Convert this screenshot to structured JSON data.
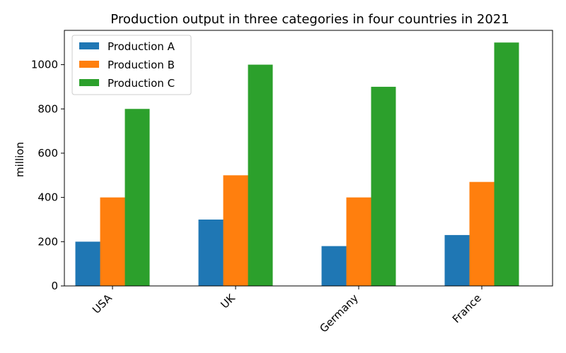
{
  "chart_data": {
    "type": "bar",
    "title": "Production output in three categories in four countries in 2021",
    "xlabel": "",
    "ylabel": "million",
    "categories": [
      "USA",
      "UK",
      "Germany",
      "France"
    ],
    "series": [
      {
        "name": "Production A",
        "values": [
          200,
          300,
          180,
          230
        ],
        "color": "#1f77b4"
      },
      {
        "name": "Production B",
        "values": [
          400,
          500,
          400,
          470
        ],
        "color": "#ff7f0e"
      },
      {
        "name": "Production C",
        "values": [
          800,
          1000,
          900,
          1100
        ],
        "color": "#2ca02c"
      }
    ],
    "yticks": [
      0,
      200,
      400,
      600,
      800,
      1000
    ],
    "ylim": [
      0,
      1155
    ],
    "grid": false,
    "legend_position": "top-left"
  }
}
